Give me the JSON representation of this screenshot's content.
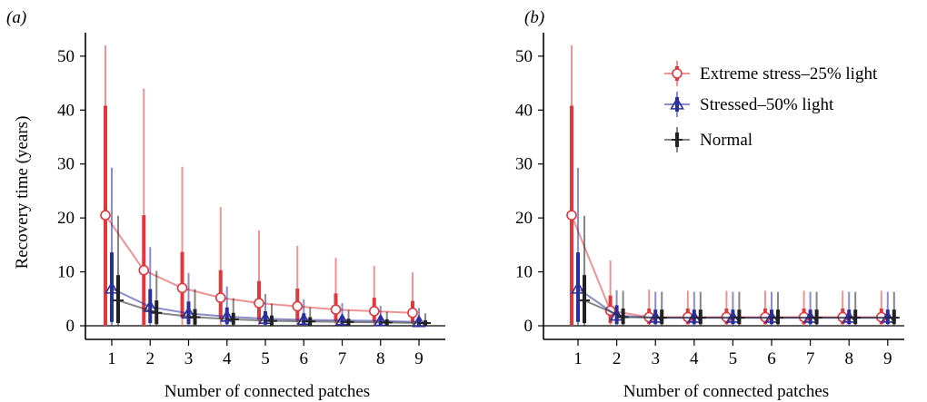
{
  "chart_data": [
    {
      "type": "line",
      "panel_label": "(a)",
      "xlabel": "Number of connected patches",
      "ylabel": "Recovery time (years)",
      "x": [
        1,
        2,
        3,
        4,
        5,
        6,
        7,
        8,
        9
      ],
      "xticks": [
        "1",
        "2",
        "3",
        "4",
        "5",
        "6",
        "7",
        "8",
        "9"
      ],
      "yticks": [
        "0",
        "10",
        "20",
        "30",
        "40",
        "50"
      ],
      "ylim": [
        0,
        52
      ],
      "grid": false,
      "series": [
        {
          "name": "Extreme stress–25% light",
          "color": "#e0383d",
          "marker": "circle",
          "values": [
            20.5,
            10.3,
            7.0,
            5.2,
            4.2,
            3.6,
            3.0,
            2.7,
            2.4
          ],
          "inner": [
            [
              0,
              40.8
            ],
            [
              0,
              20.5
            ],
            [
              1.5,
              13.7
            ],
            [
              1.3,
              10.3
            ],
            [
              1.2,
              8.3
            ],
            [
              1.0,
              6.9
            ],
            [
              0.9,
              6.0
            ],
            [
              0.8,
              5.2
            ],
            [
              0.7,
              4.6
            ]
          ],
          "outer": [
            [
              0,
              52
            ],
            [
              0,
              44.0
            ],
            [
              0,
              29.5
            ],
            [
              0,
              22.0
            ],
            [
              0,
              17.7
            ],
            [
              0,
              14.8
            ],
            [
              0,
              12.6
            ],
            [
              0,
              11.1
            ],
            [
              0,
              9.9
            ]
          ]
        },
        {
          "name": "Stressed–50% light",
          "color": "#2a2f9c",
          "marker": "triangle",
          "values": [
            6.9,
            3.5,
            2.3,
            1.7,
            1.3,
            1.1,
            1.0,
            0.9,
            0.7
          ],
          "inner": [
            [
              0.7,
              13.6
            ],
            [
              0.5,
              6.8
            ],
            [
              0.3,
              4.5
            ],
            [
              0.3,
              3.4
            ],
            [
              0.2,
              2.7
            ],
            [
              0.2,
              2.3
            ],
            [
              0.2,
              1.9
            ],
            [
              0.1,
              1.7
            ],
            [
              0.1,
              1.5
            ]
          ],
          "outer": [
            [
              0,
              29.3
            ],
            [
              0,
              14.6
            ],
            [
              0,
              9.8
            ],
            [
              0,
              7.3
            ],
            [
              0,
              5.9
            ],
            [
              0,
              4.9
            ],
            [
              0,
              4.2
            ],
            [
              0,
              3.7
            ],
            [
              0,
              3.3
            ]
          ]
        },
        {
          "name": "Normal",
          "color": "#222222",
          "marker": "plus",
          "values": [
            4.7,
            2.4,
            1.6,
            1.2,
            0.9,
            0.8,
            0.7,
            0.6,
            0.5
          ],
          "inner": [
            [
              0.5,
              9.4
            ],
            [
              0.3,
              4.7
            ],
            [
              0.2,
              3.1
            ],
            [
              0.2,
              2.4
            ],
            [
              0.1,
              1.9
            ],
            [
              0.1,
              1.6
            ],
            [
              0.1,
              1.3
            ],
            [
              0.1,
              1.2
            ],
            [
              0.1,
              1.0
            ]
          ],
          "outer": [
            [
              0,
              20.4
            ],
            [
              0,
              10.2
            ],
            [
              0,
              6.8
            ],
            [
              0,
              5.1
            ],
            [
              0,
              4.1
            ],
            [
              0,
              3.4
            ],
            [
              0,
              2.9
            ],
            [
              0,
              2.6
            ],
            [
              0,
              2.3
            ]
          ]
        }
      ]
    },
    {
      "type": "line",
      "panel_label": "(b)",
      "xlabel": "Number of connected patches",
      "ylabel": "",
      "x": [
        1,
        2,
        3,
        4,
        5,
        6,
        7,
        8,
        9
      ],
      "xticks": [
        "1",
        "2",
        "3",
        "4",
        "5",
        "6",
        "7",
        "8",
        "9"
      ],
      "yticks": [
        "0",
        "10",
        "20",
        "30",
        "40",
        "50"
      ],
      "ylim": [
        0,
        52
      ],
      "grid": false,
      "legend": "top-right",
      "series": [
        {
          "name": "Extreme stress–25% light",
          "color": "#e0383d",
          "marker": "circle",
          "values": [
            20.5,
            2.8,
            1.6,
            1.6,
            1.6,
            1.6,
            1.6,
            1.6,
            1.6
          ],
          "inner": [
            [
              0,
              40.8
            ],
            [
              0.5,
              5.6
            ],
            [
              0.3,
              3.2
            ],
            [
              0.3,
              3.2
            ],
            [
              0.3,
              3.2
            ],
            [
              0.3,
              3.2
            ],
            [
              0.3,
              3.2
            ],
            [
              0.3,
              3.2
            ],
            [
              0.3,
              3.2
            ]
          ],
          "outer": [
            [
              0,
              52
            ],
            [
              0,
              12.1
            ],
            [
              0,
              6.7
            ],
            [
              0,
              6.5
            ],
            [
              0,
              6.5
            ],
            [
              0,
              6.5
            ],
            [
              0,
              6.5
            ],
            [
              0,
              6.5
            ],
            [
              0,
              6.5
            ]
          ]
        },
        {
          "name": "Stressed–50% light",
          "color": "#2a2f9c",
          "marker": "triangle",
          "values": [
            6.9,
            1.9,
            1.5,
            1.5,
            1.5,
            1.5,
            1.5,
            1.5,
            1.5
          ],
          "inner": [
            [
              0.7,
              13.6
            ],
            [
              0.3,
              3.8
            ],
            [
              0.3,
              3.0
            ],
            [
              0.3,
              3.0
            ],
            [
              0.3,
              3.0
            ],
            [
              0.3,
              3.0
            ],
            [
              0.3,
              3.0
            ],
            [
              0.3,
              3.0
            ],
            [
              0.3,
              3.0
            ]
          ],
          "outer": [
            [
              0,
              29.3
            ],
            [
              0,
              6.6
            ],
            [
              0,
              6.3
            ],
            [
              0,
              6.3
            ],
            [
              0,
              6.3
            ],
            [
              0,
              6.3
            ],
            [
              0,
              6.3
            ],
            [
              0,
              6.3
            ],
            [
              0,
              6.3
            ]
          ]
        },
        {
          "name": "Normal",
          "color": "#222222",
          "marker": "plus",
          "values": [
            4.7,
            1.6,
            1.5,
            1.5,
            1.5,
            1.5,
            1.5,
            1.5,
            1.5
          ],
          "inner": [
            [
              0.5,
              9.4
            ],
            [
              0.3,
              3.2
            ],
            [
              0.3,
              3.0
            ],
            [
              0.3,
              3.0
            ],
            [
              0.3,
              3.0
            ],
            [
              0.3,
              3.0
            ],
            [
              0.3,
              3.0
            ],
            [
              0.3,
              3.0
            ],
            [
              0.3,
              3.0
            ]
          ],
          "outer": [
            [
              0,
              20.4
            ],
            [
              0,
              6.5
            ],
            [
              0,
              6.3
            ],
            [
              0,
              6.3
            ],
            [
              0,
              6.3
            ],
            [
              0,
              6.3
            ],
            [
              0,
              6.3
            ],
            [
              0,
              6.3
            ],
            [
              0,
              6.3
            ]
          ]
        }
      ]
    }
  ]
}
